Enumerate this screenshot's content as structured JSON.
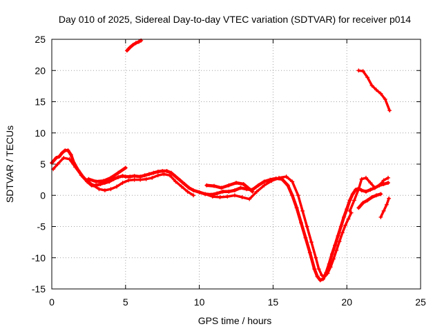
{
  "chart_data": {
    "type": "scatter",
    "title": "Day 010 of 2025, Sidereal Day-to-day VTEC variation (SDTVAR) for receiver p014",
    "xlabel": "GPS time / hours",
    "ylabel": "SDTVAR / TECUs",
    "xlim": [
      0,
      25
    ],
    "ylim": [
      -15,
      25
    ],
    "xticks": [
      0,
      5,
      10,
      15,
      20,
      25
    ],
    "yticks": [
      -15,
      -10,
      -5,
      0,
      5,
      10,
      15,
      20,
      25
    ],
    "grid": true,
    "marker": "+",
    "color": "#ff0000",
    "series": [
      {
        "x": [
          0.0,
          0.15,
          0.3,
          0.5,
          0.7,
          0.9,
          1.1,
          1.3,
          1.5,
          1.8,
          2.1,
          2.4,
          2.7,
          3.0,
          3.3,
          3.6,
          3.9,
          4.2,
          4.5,
          4.8,
          5.0,
          5.3,
          5.6,
          6.0,
          6.3,
          6.6,
          6.9,
          7.2,
          7.5,
          7.8,
          8.1,
          8.4,
          8.7,
          9.0,
          9.3,
          9.6,
          10.0,
          10.4,
          10.8,
          11.2,
          11.6,
          12.0,
          12.4,
          12.8,
          13.2,
          13.6,
          14.0,
          14.4,
          14.8,
          15.2,
          15.6,
          16.0,
          16.3,
          16.6,
          16.9,
          17.2,
          17.5,
          17.8,
          18.0,
          18.2,
          18.4,
          18.6,
          18.8,
          19.0,
          19.2,
          19.4,
          19.6,
          19.8,
          20.0,
          20.2,
          20.4,
          20.6,
          20.8,
          21.0,
          21.3,
          21.6,
          21.9,
          22.2,
          22.5,
          22.8
        ],
        "y": [
          5.2,
          5.6,
          6.0,
          6.2,
          6.8,
          7.2,
          7.2,
          6.5,
          5.2,
          4.0,
          3.0,
          2.2,
          1.6,
          1.6,
          1.8,
          2.0,
          2.2,
          2.6,
          2.9,
          3.1,
          3.0,
          3.0,
          3.1,
          3.0,
          3.2,
          3.4,
          3.6,
          3.8,
          3.9,
          3.9,
          3.6,
          3.0,
          2.4,
          1.8,
          1.2,
          0.8,
          0.5,
          0.2,
          0.1,
          0.3,
          0.6,
          0.6,
          0.8,
          1.2,
          1.0,
          0.9,
          1.6,
          2.2,
          2.5,
          2.7,
          2.6,
          1.6,
          0.0,
          -2.0,
          -4.4,
          -6.8,
          -9.2,
          -11.8,
          -13.0,
          -13.6,
          -13.4,
          -12.4,
          -11.0,
          -9.4,
          -8.0,
          -6.5,
          -5.0,
          -3.5,
          -2.2,
          -0.8,
          0.2,
          0.9,
          1.1,
          0.8,
          0.6,
          0.9,
          1.2,
          1.6,
          1.8,
          2.0
        ]
      },
      {
        "x": [
          0.1,
          0.4,
          0.8,
          1.2,
          1.6,
          2.0,
          2.4,
          2.8,
          3.2,
          3.6,
          4.0,
          4.4,
          4.8,
          5.2,
          5.6,
          6.0,
          6.4,
          6.8,
          7.2,
          7.6,
          8.0,
          8.4,
          8.8,
          9.2,
          9.6
        ],
        "y": [
          4.2,
          5.0,
          6.0,
          5.8,
          4.5,
          3.2,
          2.4,
          1.6,
          1.0,
          0.8,
          1.0,
          1.4,
          2.0,
          2.4,
          2.5,
          2.5,
          2.6,
          2.8,
          3.2,
          3.4,
          3.2,
          2.2,
          1.4,
          0.6,
          0.0
        ]
      },
      {
        "x": [
          2.5,
          3.0,
          3.5,
          4.0,
          4.5,
          5.0
        ],
        "y": [
          2.6,
          2.2,
          2.3,
          2.8,
          3.6,
          4.4
        ]
      },
      {
        "x": [
          10.4,
          10.9,
          11.4,
          11.9,
          12.4,
          12.9,
          13.4,
          13.9,
          14.4,
          14.9,
          15.4,
          15.9,
          16.3,
          16.7,
          17.0,
          17.3,
          17.6,
          17.9,
          18.1,
          18.3,
          18.5,
          18.7,
          18.9,
          19.1,
          19.3,
          19.5,
          19.7,
          19.9,
          20.1,
          20.3
        ],
        "y": [
          0.2,
          -0.2,
          -0.3,
          -0.2,
          0.0,
          -0.3,
          -0.6,
          0.6,
          1.6,
          2.3,
          2.8,
          3.0,
          2.2,
          0.0,
          -2.5,
          -5.0,
          -7.5,
          -10.0,
          -11.8,
          -12.8,
          -13.0,
          -12.5,
          -11.5,
          -10.2,
          -8.8,
          -7.4,
          -6.0,
          -4.8,
          -3.8,
          -2.8
        ]
      },
      {
        "x": [
          10.5,
          11.0,
          11.5,
          12.0,
          12.5,
          13.0,
          13.3,
          13.6
        ],
        "y": [
          1.6,
          1.5,
          1.2,
          1.6,
          2.0,
          1.8,
          1.2,
          0.6
        ]
      },
      {
        "x": [
          20.2,
          20.5,
          20.8,
          21.0,
          21.3,
          21.6,
          21.9,
          22.2,
          22.5,
          22.8
        ],
        "y": [
          -2.5,
          -0.8,
          1.0,
          2.6,
          2.8,
          2.0,
          1.2,
          1.6,
          2.4,
          2.8
        ]
      },
      {
        "x": [
          20.8,
          21.1,
          21.4,
          21.7,
          22.0,
          22.3
        ],
        "y": [
          -2.0,
          -1.2,
          -0.8,
          -0.3,
          0.0,
          0.2
        ]
      },
      {
        "x": [
          22.3,
          22.5,
          22.7,
          22.85
        ],
        "y": [
          -3.5,
          -2.5,
          -1.5,
          -0.5
        ]
      },
      {
        "x": [
          5.1,
          5.3,
          5.5,
          5.7,
          5.9,
          6.05
        ],
        "y": [
          23.2,
          23.7,
          24.1,
          24.4,
          24.6,
          24.8
        ]
      },
      {
        "x": [
          20.8,
          21.1,
          21.4,
          21.7,
          22.0,
          22.3,
          22.6,
          22.9
        ],
        "y": [
          20.0,
          19.9,
          18.9,
          17.6,
          16.9,
          16.3,
          15.4,
          13.6
        ]
      }
    ]
  }
}
